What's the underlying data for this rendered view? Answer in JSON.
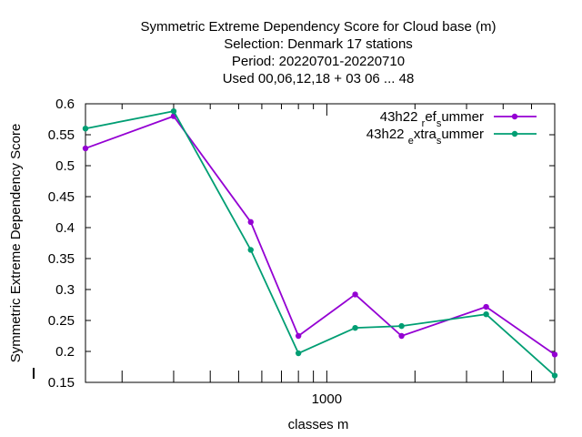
{
  "chart_data": {
    "type": "line",
    "title_lines": [
      "Symmetric Extreme Dependency Score  for Cloud base (m)",
      "Selection: Denmark     17 stations",
      "Period: 20220701-20220710",
      "Used  00,06,12,18  + 03 06 ... 48"
    ],
    "xlabel": "classes m",
    "ylabel": "Symmetric Extreme Dependency Score",
    "x_scale": "log",
    "xlim": [
      150,
      6000
    ],
    "ylim": [
      0.15,
      0.6
    ],
    "y_ticks": [
      "0.15",
      "0.2",
      "0.25",
      "0.3",
      "0.35",
      "0.4",
      "0.45",
      "0.5",
      "0.55",
      "0.6"
    ],
    "x_tick_labels": [
      {
        "value": 1000,
        "label": "1000"
      }
    ],
    "x_minor_ticks": [
      200,
      300,
      400,
      500,
      600,
      700,
      800,
      900,
      2000,
      3000,
      4000,
      5000
    ],
    "grid": false,
    "legend_position": "top-right",
    "x": [
      150,
      300,
      550,
      800,
      1250,
      1800,
      3500,
      6000
    ],
    "series": [
      {
        "name_main": "43h22",
        "name_parts": [
          {
            "text": "r",
            "sub": true
          },
          {
            "text": "ef",
            "sub": false
          },
          {
            "text": "s",
            "sub": true
          },
          {
            "text": "ummer",
            "sub": false
          }
        ],
        "color": "#9400d3",
        "values": [
          0.528,
          0.58,
          0.409,
          0.225,
          0.292,
          0.225,
          0.272,
          0.195
        ]
      },
      {
        "name_main": "43h22",
        "name_parts": [
          {
            "text": "e",
            "sub": true
          },
          {
            "text": "xtra",
            "sub": false
          },
          {
            "text": "s",
            "sub": true
          },
          {
            "text": "ummer",
            "sub": false
          }
        ],
        "color": "#009e73",
        "values": [
          0.56,
          0.588,
          0.364,
          0.197,
          0.238,
          0.241,
          0.26,
          0.161
        ]
      }
    ]
  }
}
